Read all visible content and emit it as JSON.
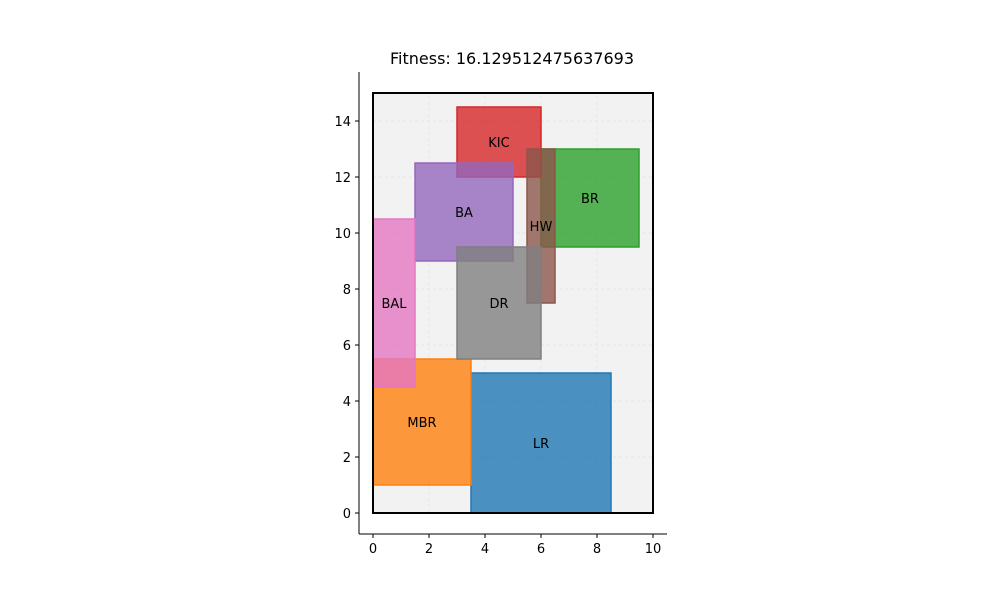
{
  "chart_data": {
    "type": "floorplan",
    "title": "Fitness: 16.129512475637693",
    "xlabel": "",
    "ylabel": "",
    "xlim": [
      -0.5,
      10.5
    ],
    "ylim": [
      -0.75,
      15.75
    ],
    "xticks": [
      0,
      2,
      4,
      6,
      8,
      10
    ],
    "yticks": [
      0,
      2,
      4,
      6,
      8,
      10,
      12,
      14
    ],
    "grid": true,
    "boundary": {
      "x": 0,
      "y": 0,
      "width": 10,
      "height": 15,
      "fill": "#f2f2f2",
      "stroke": "#000000"
    },
    "rooms": [
      {
        "name": "LR",
        "x": 3.5,
        "y": 0,
        "width": 5,
        "height": 5,
        "color": "#1f77b4"
      },
      {
        "name": "MBR",
        "x": 0,
        "y": 1,
        "width": 3.5,
        "height": 4.5,
        "color": "#ff7f0e"
      },
      {
        "name": "BR",
        "x": 6,
        "y": 9.5,
        "width": 3.5,
        "height": 3.5,
        "color": "#2ca02c"
      },
      {
        "name": "KIC",
        "x": 3,
        "y": 12,
        "width": 3,
        "height": 2.5,
        "color": "#d62728"
      },
      {
        "name": "BA",
        "x": 1.5,
        "y": 9,
        "width": 3.5,
        "height": 3.5,
        "color": "#9467bd"
      },
      {
        "name": "HW",
        "x": 5.5,
        "y": 7.5,
        "width": 1,
        "height": 5.5,
        "color": "#8c564b"
      },
      {
        "name": "BAL",
        "x": 0,
        "y": 4.5,
        "width": 1.5,
        "height": 6,
        "color": "#e377c2"
      },
      {
        "name": "DR",
        "x": 3,
        "y": 5.5,
        "width": 3,
        "height": 4,
        "color": "#7f7f7f"
      }
    ]
  }
}
